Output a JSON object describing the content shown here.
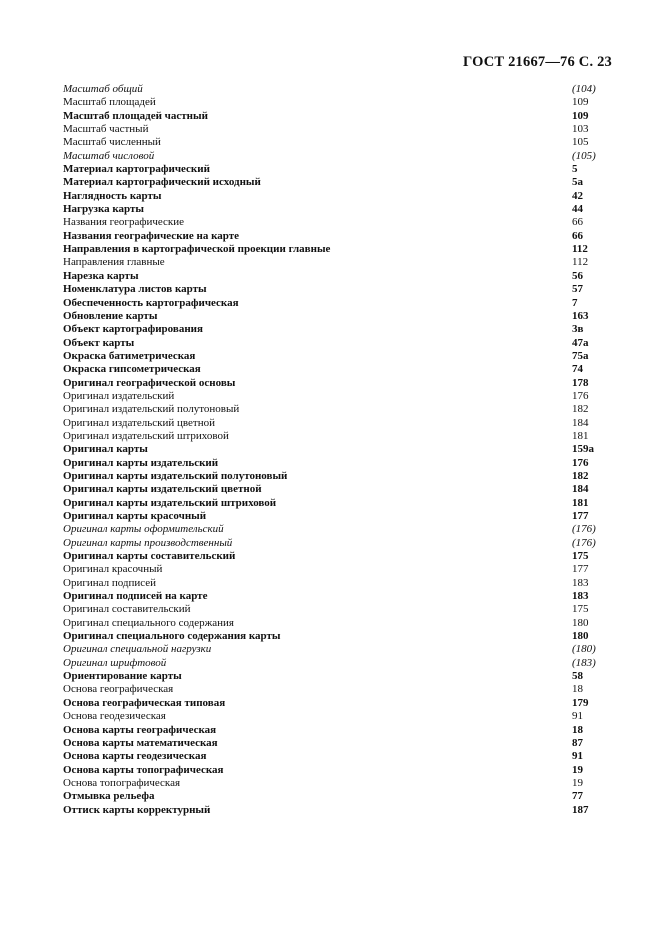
{
  "header": {
    "title": "ГОСТ 21667—76 С. 23"
  },
  "entries": [
    {
      "term": "Масштаб общий",
      "ref": "(104)",
      "style": "i"
    },
    {
      "term": "Масштаб площадей",
      "ref": "109",
      "style": "n"
    },
    {
      "term": "Масштаб площадей частный",
      "ref": "109",
      "style": "b"
    },
    {
      "term": "Масштаб частный",
      "ref": "103",
      "style": "n"
    },
    {
      "term": "Масштаб численный",
      "ref": "105",
      "style": "n"
    },
    {
      "term": "Масштаб числовой",
      "ref": "(105)",
      "style": "i"
    },
    {
      "term": "Материал картографический",
      "ref": "5",
      "style": "b"
    },
    {
      "term": "Материал картографический исходный",
      "ref": "5а",
      "style": "b"
    },
    {
      "term": "Наглядность карты",
      "ref": "42",
      "style": "b"
    },
    {
      "term": "Нагрузка карты",
      "ref": "44",
      "style": "b"
    },
    {
      "term": "Названия географические",
      "ref": "66",
      "style": "n"
    },
    {
      "term": "Названия географические на карте",
      "ref": "66",
      "style": "b"
    },
    {
      "term": "Направления в картографической проекции главные",
      "ref": "112",
      "style": "b"
    },
    {
      "term": "Направления главные",
      "ref": "112",
      "style": "n"
    },
    {
      "term": "Нарезка карты",
      "ref": "56",
      "style": "b"
    },
    {
      "term": "Номенклатура листов карты",
      "ref": "57",
      "style": "b"
    },
    {
      "term": "Обеспеченность картографическая",
      "ref": "7",
      "style": "b"
    },
    {
      "term": "Обновление карты",
      "ref": "163",
      "style": "b"
    },
    {
      "term": "Объект картографирования",
      "ref": "3в",
      "style": "b"
    },
    {
      "term": "Объект карты",
      "ref": "47а",
      "style": "b"
    },
    {
      "term": "Окраска батиметрическая",
      "ref": "75а",
      "style": "b"
    },
    {
      "term": "Окраска гипсометрическая",
      "ref": "74",
      "style": "b"
    },
    {
      "term": "Оригинал географической основы",
      "ref": "178",
      "style": "b"
    },
    {
      "term": "Оригинал издательский",
      "ref": "176",
      "style": "n"
    },
    {
      "term": "Оригинал издательский полутоновый",
      "ref": "182",
      "style": "n"
    },
    {
      "term": "Оригинал издательский цветной",
      "ref": "184",
      "style": "n"
    },
    {
      "term": "Оригинал издательский штриховой",
      "ref": "181",
      "style": "n"
    },
    {
      "term": "Оригинал карты",
      "ref": "159а",
      "style": "b"
    },
    {
      "term": "Оригинал карты издательский",
      "ref": "176",
      "style": "b"
    },
    {
      "term": "Оригинал карты издательский полутоновый",
      "ref": "182",
      "style": "b"
    },
    {
      "term": "Оригинал карты издательский цветной",
      "ref": "184",
      "style": "b"
    },
    {
      "term": "Оригинал карты издательский штриховой",
      "ref": "181",
      "style": "b"
    },
    {
      "term": "Оригинал карты красочный",
      "ref": "177",
      "style": "b"
    },
    {
      "term": "Оригинал карты оформительский",
      "ref": "(176)",
      "style": "i"
    },
    {
      "term": "Оригинал карты производственный",
      "ref": "(176)",
      "style": "i"
    },
    {
      "term": "Оригинал карты составительский",
      "ref": "175",
      "style": "b"
    },
    {
      "term": "Оригинал красочный",
      "ref": "177",
      "style": "n"
    },
    {
      "term": "Оригинал подписей",
      "ref": "183",
      "style": "n"
    },
    {
      "term": "Оригинал подписей на карте",
      "ref": "183",
      "style": "b"
    },
    {
      "term": "Оригинал составительский",
      "ref": "175",
      "style": "n"
    },
    {
      "term": "Оригинал специального содержания",
      "ref": "180",
      "style": "n"
    },
    {
      "term": "Оригинал специального содержания карты",
      "ref": "180",
      "style": "b"
    },
    {
      "term": "Оригинал специальной нагрузки",
      "ref": "(180)",
      "style": "i"
    },
    {
      "term": "Оригинал шрифтовой",
      "ref": "(183)",
      "style": "i"
    },
    {
      "term": "Ориентирование карты",
      "ref": "58",
      "style": "b"
    },
    {
      "term": "Основа географическая",
      "ref": "18",
      "style": "n"
    },
    {
      "term": "Основа географическая типовая",
      "ref": "179",
      "style": "b"
    },
    {
      "term": "Основа геодезическая",
      "ref": "91",
      "style": "n"
    },
    {
      "term": "Основа карты географическая",
      "ref": "18",
      "style": "b"
    },
    {
      "term": "Основа карты математическая",
      "ref": "87",
      "style": "b"
    },
    {
      "term": "Основа карты геодезическая",
      "ref": "91",
      "style": "b"
    },
    {
      "term": "Основа карты топографическая",
      "ref": "19",
      "style": "b"
    },
    {
      "term": "Основа топографическая",
      "ref": "19",
      "style": "n"
    },
    {
      "term": "Отмывка рельефа",
      "ref": "77",
      "style": "b"
    },
    {
      "term": "Оттиск карты корректурный",
      "ref": "187",
      "style": "b"
    }
  ]
}
